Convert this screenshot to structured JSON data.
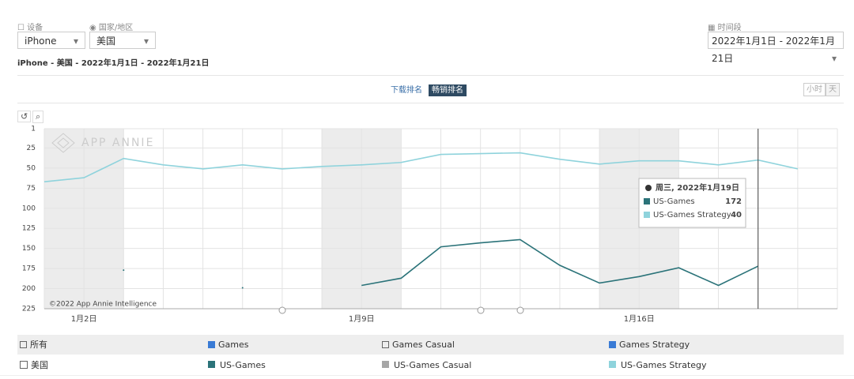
{
  "ui": {
    "device_label": "设备",
    "device": "iPhone",
    "region_label": "国家/地区",
    "region": "美国",
    "period_label": "时间段",
    "period": "2022年1月1日 - 2022年1月21日",
    "subtitle": "iPhone - 美国 - 2022年1月1日 - 2022年1月21日",
    "tabs": [
      "下载排名",
      "畅销排名"
    ],
    "active_tab": 1,
    "granularity": [
      "小时",
      "天"
    ],
    "filter_all": "所有",
    "filter_all_checked": false,
    "filters": [
      {
        "name": "Games",
        "checked": true
      },
      {
        "name": "Games Casual",
        "checked": false
      },
      {
        "name": "Games Strategy",
        "checked": true
      }
    ],
    "country": "美国",
    "inactive_series": [
      {
        "name": "US-Games Casual",
        "color": "#a6a6a6"
      }
    ]
  },
  "chart_data": {
    "type": "line",
    "watermark": "APP ANNIE",
    "copyright": "©2022 App Annie Intelligence",
    "categories": [
      null,
      "1月2日",
      null,
      null,
      null,
      null,
      null,
      null,
      "1月9日",
      null,
      null,
      null,
      null,
      null,
      null,
      "1月16日",
      null,
      null,
      null,
      null,
      null
    ],
    "series": [
      {
        "name": "US-Games",
        "color": "#2b7379",
        "values": [
          null,
          null,
          177,
          null,
          null,
          199,
          null,
          null,
          196,
          187,
          148,
          143,
          139,
          171,
          193,
          185,
          174,
          196,
          172,
          null,
          null
        ]
      },
      {
        "name": "US-Games Strategy",
        "color": "#8fd3dc",
        "values": [
          67,
          62,
          38,
          46,
          51,
          46,
          51,
          48,
          46,
          43,
          33,
          32,
          31,
          39,
          45,
          41,
          41,
          46,
          40,
          51,
          null
        ]
      }
    ],
    "ylim": [
      225,
      1
    ],
    "yticks": [
      1,
      25,
      50,
      75,
      100,
      125,
      150,
      175,
      200,
      225
    ],
    "grid": true,
    "tooltip_title": "周三, 2022年1月19日",
    "tooltip_index": 18
  }
}
